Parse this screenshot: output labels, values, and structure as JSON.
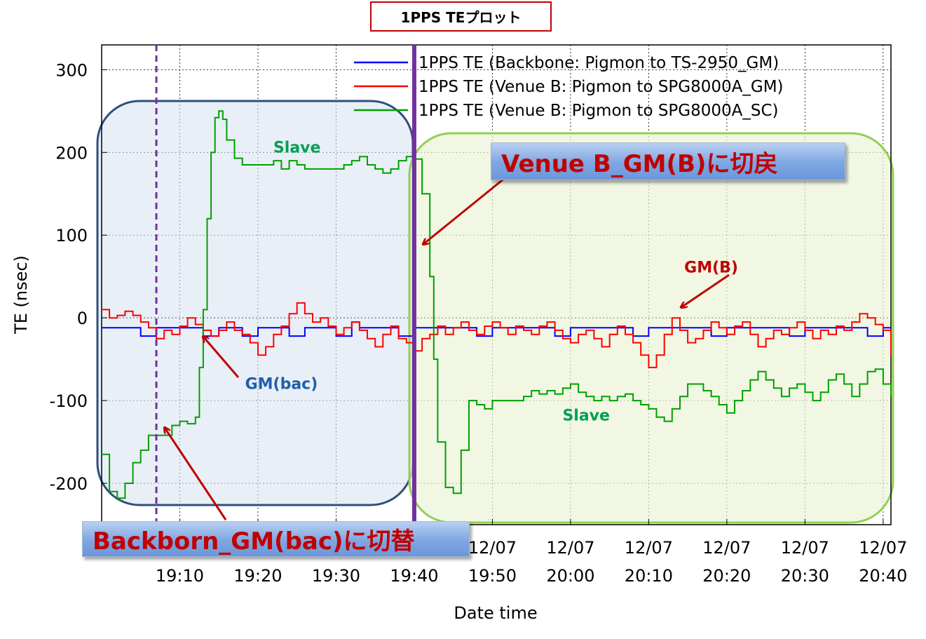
{
  "title": "1PPS TEプロット",
  "chart_data": {
    "type": "line",
    "xlabel": "Date time",
    "ylabel": "TE (nsec)",
    "ylim": [
      -250,
      330
    ],
    "yticks": [
      300,
      200,
      100,
      0,
      -100,
      -200
    ],
    "xlim_minutes": [
      "19:00",
      "20:41"
    ],
    "xticks": [
      {
        "date": "12/07",
        "time": "19:10"
      },
      {
        "date": "12/07",
        "time": "19:20"
      },
      {
        "date": "12/07",
        "time": "19:30"
      },
      {
        "date": "12/07",
        "time": "19:40"
      },
      {
        "date": "12/07",
        "time": "19:50"
      },
      {
        "date": "12/07",
        "time": "20:00"
      },
      {
        "date": "12/07",
        "time": "20:10"
      },
      {
        "date": "12/07",
        "time": "20:20"
      },
      {
        "date": "12/07",
        "time": "20:30"
      },
      {
        "date": "12/07",
        "time": "20:40"
      }
    ],
    "grid": true,
    "legend_position": "top-right",
    "series": [
      {
        "name": "1PPS TE (Backbone: Pigmon to TS-2950_GM)",
        "color": "#0000ff",
        "points": [
          [
            "19:00",
            -12
          ],
          [
            "19:05",
            -12
          ],
          [
            "19:05",
            -22
          ],
          [
            "19:07",
            -22
          ],
          [
            "19:07",
            -12
          ],
          [
            "19:13",
            -12
          ],
          [
            "19:13",
            -22
          ],
          [
            "19:15",
            -22
          ],
          [
            "19:15",
            -12
          ],
          [
            "19:18",
            -12
          ],
          [
            "19:18",
            -22
          ],
          [
            "19:20",
            -22
          ],
          [
            "19:20",
            -12
          ],
          [
            "19:24",
            -12
          ],
          [
            "19:24",
            -22
          ],
          [
            "19:26",
            -22
          ],
          [
            "19:26",
            -12
          ],
          [
            "19:30",
            -12
          ],
          [
            "19:30",
            -22
          ],
          [
            "19:32",
            -22
          ],
          [
            "19:32",
            -5
          ],
          [
            "19:33",
            -5
          ],
          [
            "19:33",
            -12
          ],
          [
            "19:38",
            -12
          ],
          [
            "19:38",
            -22
          ],
          [
            "19:40",
            -22
          ],
          [
            "19:40",
            -12
          ],
          [
            "19:48",
            -12
          ],
          [
            "19:48",
            -22
          ],
          [
            "19:50",
            -22
          ],
          [
            "19:50",
            -12
          ],
          [
            "19:58",
            -12
          ],
          [
            "19:58",
            -22
          ],
          [
            "20:00",
            -22
          ],
          [
            "20:00",
            -12
          ],
          [
            "20:08",
            -12
          ],
          [
            "20:08",
            -22
          ],
          [
            "20:10",
            -22
          ],
          [
            "20:10",
            -12
          ],
          [
            "20:18",
            -12
          ],
          [
            "20:18",
            -22
          ],
          [
            "20:20",
            -22
          ],
          [
            "20:20",
            -12
          ],
          [
            "20:28",
            -12
          ],
          [
            "20:28",
            -22
          ],
          [
            "20:30",
            -22
          ],
          [
            "20:30",
            -12
          ],
          [
            "20:38",
            -12
          ],
          [
            "20:38",
            -22
          ],
          [
            "20:40",
            -22
          ],
          [
            "20:40",
            -12
          ],
          [
            "20:41",
            -12
          ]
        ]
      },
      {
        "name": "1PPS TE (Venue B: Pigmon to SPG8000A_GM)",
        "color": "#ff0000",
        "points": [
          [
            "19:00",
            10
          ],
          [
            "19:01",
            0
          ],
          [
            "19:02",
            3
          ],
          [
            "19:03",
            8
          ],
          [
            "19:04",
            3
          ],
          [
            "19:05",
            -5
          ],
          [
            "19:06",
            -12
          ],
          [
            "19:07",
            -25
          ],
          [
            "19:08",
            -15
          ],
          [
            "19:09",
            -20
          ],
          [
            "19:10",
            -10
          ],
          [
            "19:11",
            0
          ],
          [
            "19:12",
            -8
          ],
          [
            "19:13",
            -15
          ],
          [
            "19:14",
            -22
          ],
          [
            "19:15",
            -15
          ],
          [
            "19:16",
            -5
          ],
          [
            "19:17",
            -15
          ],
          [
            "19:18",
            -20
          ],
          [
            "19:19",
            -30
          ],
          [
            "19:20",
            -45
          ],
          [
            "19:21",
            -35
          ],
          [
            "19:22",
            -20
          ],
          [
            "19:23",
            -10
          ],
          [
            "19:24",
            5
          ],
          [
            "19:25",
            18
          ],
          [
            "19:26",
            5
          ],
          [
            "19:27",
            -5
          ],
          [
            "19:28",
            0
          ],
          [
            "19:29",
            -10
          ],
          [
            "19:30",
            -20
          ],
          [
            "19:31",
            -12
          ],
          [
            "19:32",
            -5
          ],
          [
            "19:33",
            -15
          ],
          [
            "19:34",
            -25
          ],
          [
            "19:35",
            -35
          ],
          [
            "19:36",
            -20
          ],
          [
            "19:37",
            -10
          ],
          [
            "19:38",
            -25
          ],
          [
            "19:39",
            -30
          ],
          [
            "19:40",
            -40
          ],
          [
            "19:41",
            -25
          ],
          [
            "19:42",
            -20
          ],
          [
            "19:43",
            -10
          ],
          [
            "19:44",
            -20
          ],
          [
            "19:45",
            -12
          ],
          [
            "19:46",
            -5
          ],
          [
            "19:47",
            -15
          ],
          [
            "19:48",
            -20
          ],
          [
            "19:49",
            -10
          ],
          [
            "19:50",
            -5
          ],
          [
            "19:51",
            -12
          ],
          [
            "19:52",
            -20
          ],
          [
            "19:53",
            -10
          ],
          [
            "19:54",
            -15
          ],
          [
            "19:55",
            -20
          ],
          [
            "19:56",
            -10
          ],
          [
            "19:57",
            -5
          ],
          [
            "19:58",
            -15
          ],
          [
            "19:59",
            -25
          ],
          [
            "20:00",
            -30
          ],
          [
            "20:01",
            -20
          ],
          [
            "20:02",
            -15
          ],
          [
            "20:03",
            -25
          ],
          [
            "20:04",
            -35
          ],
          [
            "20:05",
            -20
          ],
          [
            "20:06",
            -10
          ],
          [
            "20:07",
            -20
          ],
          [
            "20:08",
            -30
          ],
          [
            "20:09",
            -45
          ],
          [
            "20:10",
            -60
          ],
          [
            "20:11",
            -45
          ],
          [
            "20:12",
            -20
          ],
          [
            "20:13",
            0
          ],
          [
            "20:14",
            -15
          ],
          [
            "20:15",
            -30
          ],
          [
            "20:16",
            -25
          ],
          [
            "20:17",
            -15
          ],
          [
            "20:18",
            -5
          ],
          [
            "20:19",
            -12
          ],
          [
            "20:20",
            -20
          ],
          [
            "20:21",
            -10
          ],
          [
            "20:22",
            -5
          ],
          [
            "20:23",
            -20
          ],
          [
            "20:24",
            -35
          ],
          [
            "20:25",
            -25
          ],
          [
            "20:26",
            -15
          ],
          [
            "20:27",
            -20
          ],
          [
            "20:28",
            -12
          ],
          [
            "20:29",
            -5
          ],
          [
            "20:30",
            -15
          ],
          [
            "20:31",
            -25
          ],
          [
            "20:32",
            -15
          ],
          [
            "20:33",
            -20
          ],
          [
            "20:34",
            -10
          ],
          [
            "20:35",
            -15
          ],
          [
            "20:36",
            -5
          ],
          [
            "20:37",
            5
          ],
          [
            "20:38",
            0
          ],
          [
            "20:39",
            -8
          ],
          [
            "20:40",
            -15
          ],
          [
            "20:41",
            -45
          ]
        ]
      },
      {
        "name": "1PPS TE (Venue B: Pigmon to SPG8000A_SC)",
        "color": "#00a000",
        "points": [
          [
            "19:00",
            -165
          ],
          [
            "19:01",
            -210
          ],
          [
            "19:02",
            -218
          ],
          [
            "19:03",
            -200
          ],
          [
            "19:04",
            -175
          ],
          [
            "19:05",
            -160
          ],
          [
            "19:06",
            -142
          ],
          [
            "19:08",
            -142
          ],
          [
            "19:09",
            -130
          ],
          [
            "19:10",
            -125
          ],
          [
            "19:11",
            -128
          ],
          [
            "19:12",
            -120
          ],
          [
            "19:12.5",
            -60
          ],
          [
            "19:13",
            10
          ],
          [
            "19:13.5",
            120
          ],
          [
            "19:14",
            200
          ],
          [
            "19:14.5",
            242
          ],
          [
            "19:15",
            250
          ],
          [
            "19:15.5",
            240
          ],
          [
            "19:16",
            215
          ],
          [
            "19:17",
            193
          ],
          [
            "19:18",
            185
          ],
          [
            "19:21",
            185
          ],
          [
            "19:22",
            190
          ],
          [
            "19:23",
            180
          ],
          [
            "19:24",
            190
          ],
          [
            "19:25",
            185
          ],
          [
            "19:26",
            180
          ],
          [
            "19:30",
            180
          ],
          [
            "19:31",
            185
          ],
          [
            "19:32",
            190
          ],
          [
            "19:33",
            195
          ],
          [
            "19:34",
            185
          ],
          [
            "19:35",
            180
          ],
          [
            "19:36",
            175
          ],
          [
            "19:37",
            180
          ],
          [
            "19:38",
            190
          ],
          [
            "19:39",
            195
          ],
          [
            "19:40",
            192
          ],
          [
            "19:41",
            150
          ],
          [
            "19:42",
            50
          ],
          [
            "19:42.5",
            -50
          ],
          [
            "19:43",
            -150
          ],
          [
            "19:44",
            -205
          ],
          [
            "19:45",
            -212
          ],
          [
            "19:46",
            -160
          ],
          [
            "19:47",
            -100
          ],
          [
            "19:48",
            -105
          ],
          [
            "19:49",
            -110
          ],
          [
            "19:50",
            -100
          ],
          [
            "19:53",
            -100
          ],
          [
            "19:54",
            -95
          ],
          [
            "19:55",
            -88
          ],
          [
            "19:56",
            -92
          ],
          [
            "19:57",
            -88
          ],
          [
            "19:58",
            -92
          ],
          [
            "19:59",
            -85
          ],
          [
            "20:00",
            -80
          ],
          [
            "20:01",
            -90
          ],
          [
            "20:02",
            -95
          ],
          [
            "20:03",
            -100
          ],
          [
            "20:04",
            -95
          ],
          [
            "20:05",
            -100
          ],
          [
            "20:06",
            -95
          ],
          [
            "20:07",
            -92
          ],
          [
            "20:08",
            -100
          ],
          [
            "20:09",
            -105
          ],
          [
            "20:10",
            -110
          ],
          [
            "20:11",
            -120
          ],
          [
            "20:12",
            -125
          ],
          [
            "20:13",
            -110
          ],
          [
            "20:14",
            -95
          ],
          [
            "20:15",
            -80
          ],
          [
            "20:16",
            -80
          ],
          [
            "20:17",
            -88
          ],
          [
            "20:18",
            -95
          ],
          [
            "20:19",
            -105
          ],
          [
            "20:20",
            -115
          ],
          [
            "20:21",
            -100
          ],
          [
            "20:22",
            -88
          ],
          [
            "20:23",
            -75
          ],
          [
            "20:24",
            -65
          ],
          [
            "20:25",
            -75
          ],
          [
            "20:26",
            -85
          ],
          [
            "20:27",
            -95
          ],
          [
            "20:28",
            -85
          ],
          [
            "20:29",
            -80
          ],
          [
            "20:30",
            -90
          ],
          [
            "20:31",
            -100
          ],
          [
            "20:32",
            -90
          ],
          [
            "20:33",
            -75
          ],
          [
            "20:34",
            -68
          ],
          [
            "20:35",
            -80
          ],
          [
            "20:36",
            -95
          ],
          [
            "20:37",
            -80
          ],
          [
            "20:38",
            -65
          ],
          [
            "20:39",
            -62
          ],
          [
            "20:40",
            -80
          ],
          [
            "20:41",
            -95
          ]
        ]
      }
    ],
    "annotations": [
      {
        "text": "Slave",
        "color": "#00a050",
        "x": "19:25",
        "y": 200
      },
      {
        "text": "Slave",
        "color": "#00a050",
        "x": "20:02",
        "y": -124
      },
      {
        "text": "GM(B)",
        "color": "#c00000",
        "x": "20:18",
        "y": 55
      },
      {
        "text": "GM(bac)",
        "color": "#1f5fa8",
        "x": "19:23",
        "y": -86
      }
    ],
    "callouts": {
      "venue": "Venue B_GM(B)に切戻",
      "backborn": "Backborn_GM(bac)に切替"
    },
    "event_lines": [
      {
        "x": "19:07",
        "style": "dashed",
        "color": "#7030a0"
      },
      {
        "x": "19:40",
        "style": "solid",
        "color": "#7030a0"
      }
    ]
  }
}
